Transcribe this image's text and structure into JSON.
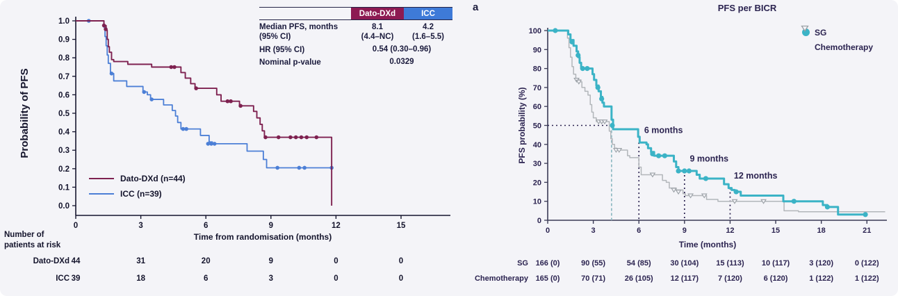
{
  "page": {
    "background": "#f4f4f8"
  },
  "chart_data": [
    {
      "id": "left-km",
      "type": "line",
      "subtype": "kaplan-meier-step",
      "title": "",
      "xlabel": "Time from randomisation (months)",
      "ylabel": "Probability of PFS",
      "xlim": [
        0,
        17.2
      ],
      "ylim": [
        0,
        1.0
      ],
      "xticks": [
        0,
        3,
        6,
        9,
        12,
        15
      ],
      "yticks": [
        0.0,
        0.1,
        0.2,
        0.3,
        0.4,
        0.5,
        0.6,
        0.7,
        0.8,
        0.9,
        1.0
      ],
      "grid": false,
      "legend_position": "inside-lower-left",
      "series": [
        {
          "name": "ICC (n=39)",
          "color": "#4c7fd6",
          "marker": "dot",
          "points": [
            [
              0,
              1.0
            ],
            [
              1.2,
              1.0
            ],
            [
              1.3,
              0.965
            ],
            [
              1.35,
              0.915
            ],
            [
              1.4,
              0.865
            ],
            [
              1.45,
              0.815
            ],
            [
              1.5,
              0.77
            ],
            [
              1.6,
              0.715
            ],
            [
              1.75,
              0.675
            ],
            [
              2.25,
              0.675
            ],
            [
              2.35,
              0.645
            ],
            [
              3.0,
              0.645
            ],
            [
              3.1,
              0.615
            ],
            [
              3.3,
              0.6
            ],
            [
              3.45,
              0.575
            ],
            [
              3.95,
              0.575
            ],
            [
              4.05,
              0.545
            ],
            [
              4.35,
              0.545
            ],
            [
              4.45,
              0.515
            ],
            [
              4.6,
              0.485
            ],
            [
              4.7,
              0.45
            ],
            [
              4.85,
              0.415
            ],
            [
              5.6,
              0.415
            ],
            [
              5.75,
              0.38
            ],
            [
              6.05,
              0.38
            ],
            [
              6.15,
              0.345
            ],
            [
              6.3,
              0.335
            ],
            [
              7.75,
              0.335
            ],
            [
              7.9,
              0.295
            ],
            [
              8.55,
              0.295
            ],
            [
              8.65,
              0.25
            ],
            [
              8.8,
              0.205
            ],
            [
              11.8,
              0.205
            ]
          ],
          "censors": [
            [
              0.6,
              1.0
            ],
            [
              1.65,
              0.715
            ],
            [
              3.15,
              0.615
            ],
            [
              3.5,
              0.575
            ],
            [
              4.95,
              0.415
            ],
            [
              5.1,
              0.415
            ],
            [
              6.1,
              0.335
            ],
            [
              6.25,
              0.335
            ],
            [
              6.4,
              0.335
            ],
            [
              9.3,
              0.205
            ],
            [
              10.3,
              0.205
            ],
            [
              10.55,
              0.205
            ],
            [
              11.8,
              0.205
            ]
          ]
        },
        {
          "name": "Dato-DXd (n=44)",
          "color": "#7e2150",
          "marker": "dot",
          "points": [
            [
              0,
              1.0
            ],
            [
              1.25,
              1.0
            ],
            [
              1.3,
              0.975
            ],
            [
              1.4,
              0.95
            ],
            [
              1.45,
              0.9
            ],
            [
              1.5,
              0.86
            ],
            [
              1.55,
              0.83
            ],
            [
              1.65,
              0.79
            ],
            [
              1.75,
              0.78
            ],
            [
              2.3,
              0.78
            ],
            [
              2.4,
              0.765
            ],
            [
              3.4,
              0.765
            ],
            [
              3.5,
              0.75
            ],
            [
              4.7,
              0.75
            ],
            [
              4.85,
              0.72
            ],
            [
              5.05,
              0.69
            ],
            [
              5.3,
              0.66
            ],
            [
              5.5,
              0.635
            ],
            [
              6.3,
              0.635
            ],
            [
              6.5,
              0.6
            ],
            [
              6.7,
              0.565
            ],
            [
              7.4,
              0.565
            ],
            [
              7.55,
              0.54
            ],
            [
              8.1,
              0.54
            ],
            [
              8.2,
              0.51
            ],
            [
              8.35,
              0.475
            ],
            [
              8.5,
              0.44
            ],
            [
              8.6,
              0.405
            ],
            [
              8.7,
              0.37
            ],
            [
              11.8,
              0.37
            ],
            [
              11.8,
              0.0
            ]
          ],
          "censors": [
            [
              1.3,
              0.975
            ],
            [
              1.38,
              0.955
            ],
            [
              4.4,
              0.75
            ],
            [
              4.55,
              0.75
            ],
            [
              5.55,
              0.635
            ],
            [
              7.0,
              0.565
            ],
            [
              7.15,
              0.565
            ],
            [
              7.6,
              0.54
            ],
            [
              8.75,
              0.37
            ],
            [
              9.35,
              0.37
            ],
            [
              9.9,
              0.37
            ],
            [
              10.15,
              0.37
            ],
            [
              10.4,
              0.37
            ],
            [
              10.65,
              0.37
            ],
            [
              11.1,
              0.37
            ]
          ]
        }
      ],
      "inset_table": {
        "col1": "Dato-DXd",
        "col2": "ICC",
        "col1_bg": "#8d1a52",
        "col2_bg": "#3e7ad8",
        "r1_label": "Median PFS, months",
        "r1_label2": "(95% CI)",
        "r1_c1": "8.1",
        "r1_c1b": "(4.4–NC)",
        "r1_c2": "4.2",
        "r1_c2b": "(1.6–5.5)",
        "r2_label": "HR (95% CI)",
        "r2_value": "0.54 (0.30–0.96)",
        "r3_label": "Nominal p-value",
        "r3_value": "0.0329"
      },
      "risk_table": {
        "header_line1": "Number of",
        "header_line2": "patients at risk",
        "rows": [
          {
            "label": "Dato-DXd",
            "values": [
              "44",
              "31",
              "20",
              "9",
              "0",
              "0"
            ]
          },
          {
            "label": "ICC",
            "values": [
              "39",
              "18",
              "6",
              "3",
              "0",
              "0"
            ]
          }
        ]
      }
    },
    {
      "id": "right-km",
      "type": "line",
      "subtype": "kaplan-meier-step",
      "panel_label": "a",
      "title": "PFS per BICR",
      "xlabel": "Time (months)",
      "ylabel": "PFS probability (%)",
      "xlim": [
        0,
        22.3
      ],
      "ylim": [
        0,
        100
      ],
      "xticks": [
        0,
        3,
        6,
        9,
        12,
        15,
        18,
        21
      ],
      "yticks": [
        0,
        10,
        20,
        30,
        40,
        50,
        60,
        70,
        80,
        90,
        100
      ],
      "grid": false,
      "legend_position": "outside-upper-right",
      "series": [
        {
          "name": "Chemotherapy",
          "color": "#b2b6ba",
          "marker": "triangle-down",
          "marker_stroke": "#9aa0a6",
          "points": [
            [
              0,
              100
            ],
            [
              1.2,
              100
            ],
            [
              1.3,
              96
            ],
            [
              1.4,
              91
            ],
            [
              1.5,
              86
            ],
            [
              1.6,
              81
            ],
            [
              1.7,
              77
            ],
            [
              1.85,
              74
            ],
            [
              2.15,
              73
            ],
            [
              2.25,
              70
            ],
            [
              2.45,
              68
            ],
            [
              2.65,
              66
            ],
            [
              2.8,
              61
            ],
            [
              2.9,
              57
            ],
            [
              3.0,
              54
            ],
            [
              3.2,
              52
            ],
            [
              3.95,
              52
            ],
            [
              4.05,
              47
            ],
            [
              4.15,
              43
            ],
            [
              4.25,
              40
            ],
            [
              4.4,
              38
            ],
            [
              4.55,
              37
            ],
            [
              5.1,
              37
            ],
            [
              5.25,
              34
            ],
            [
              5.4,
              33
            ],
            [
              5.9,
              33
            ],
            [
              6.0,
              28
            ],
            [
              6.15,
              24
            ],
            [
              7.3,
              24
            ],
            [
              7.55,
              21
            ],
            [
              7.8,
              20
            ],
            [
              8.0,
              17
            ],
            [
              8.45,
              16
            ],
            [
              8.9,
              14
            ],
            [
              9.05,
              13
            ],
            [
              10.2,
              13
            ],
            [
              10.45,
              11
            ],
            [
              11.2,
              10
            ],
            [
              15.3,
              10
            ],
            [
              15.55,
              5
            ],
            [
              16.5,
              4.5
            ],
            [
              22.2,
              4.5
            ]
          ],
          "censors": [
            [
              1.9,
              74
            ],
            [
              2.05,
              73
            ],
            [
              3.35,
              52
            ],
            [
              3.55,
              52
            ],
            [
              3.75,
              52
            ],
            [
              4.5,
              37
            ],
            [
              4.7,
              37
            ],
            [
              6.9,
              24
            ],
            [
              8.3,
              16
            ],
            [
              8.6,
              15
            ],
            [
              9.4,
              13
            ],
            [
              10.3,
              13
            ],
            [
              12.3,
              10
            ],
            [
              14.2,
              10
            ]
          ]
        },
        {
          "name": "SG",
          "color": "#3bb3c6",
          "marker": "circle",
          "points": [
            [
              0,
              100
            ],
            [
              1.2,
              100
            ],
            [
              1.35,
              98
            ],
            [
              1.5,
              95
            ],
            [
              1.7,
              92
            ],
            [
              1.9,
              89
            ],
            [
              2.0,
              86
            ],
            [
              2.1,
              83
            ],
            [
              2.2,
              80
            ],
            [
              2.85,
              80
            ],
            [
              2.95,
              77
            ],
            [
              3.05,
              74
            ],
            [
              3.2,
              71
            ],
            [
              3.35,
              68
            ],
            [
              3.5,
              65
            ],
            [
              3.6,
              62
            ],
            [
              3.7,
              60
            ],
            [
              4.1,
              60
            ],
            [
              4.2,
              53
            ],
            [
              4.3,
              48
            ],
            [
              5.8,
              48
            ],
            [
              5.95,
              44
            ],
            [
              6.05,
              41
            ],
            [
              6.5,
              40
            ],
            [
              6.6,
              38
            ],
            [
              6.8,
              36
            ],
            [
              7.0,
              34
            ],
            [
              8.2,
              34
            ],
            [
              8.3,
              31
            ],
            [
              8.45,
              28
            ],
            [
              8.6,
              26
            ],
            [
              9.6,
              26
            ],
            [
              9.8,
              24
            ],
            [
              10.0,
              22
            ],
            [
              11.4,
              22
            ],
            [
              11.6,
              19
            ],
            [
              11.9,
              17
            ],
            [
              12.1,
              16
            ],
            [
              12.3,
              15
            ],
            [
              12.7,
              13
            ],
            [
              15.3,
              13
            ],
            [
              15.5,
              10
            ],
            [
              17.9,
              10
            ],
            [
              18.1,
              8
            ],
            [
              18.4,
              7
            ],
            [
              18.9,
              7
            ],
            [
              19.1,
              3
            ],
            [
              20.9,
              3
            ]
          ],
          "censors": [
            [
              0.5,
              100
            ],
            [
              1.6,
              94
            ],
            [
              2.0,
              87
            ],
            [
              2.3,
              80
            ],
            [
              2.6,
              80
            ],
            [
              3.3,
              70
            ],
            [
              3.55,
              64
            ],
            [
              4.25,
              50
            ],
            [
              6.9,
              35
            ],
            [
              7.3,
              34
            ],
            [
              7.7,
              34
            ],
            [
              8.6,
              26
            ],
            [
              9.0,
              26
            ],
            [
              9.3,
              26
            ],
            [
              10.4,
              22
            ],
            [
              12.4,
              15
            ],
            [
              16.2,
              10
            ],
            [
              18.4,
              7
            ],
            [
              20.9,
              3
            ]
          ]
        }
      ],
      "reference_lines": {
        "median_horizontal": {
          "y": 50,
          "x_start": 0,
          "x_end": 4.2,
          "color": "#2b2350"
        },
        "median_vertical": {
          "x": 4.2,
          "y_top": 50,
          "color": "#8fbac3"
        },
        "month_verticals": [
          {
            "x": 6,
            "y_top": 41,
            "color": "#2b2350"
          },
          {
            "x": 9,
            "y_top": 26,
            "color": "#2b2350"
          },
          {
            "x": 12,
            "y_top": 17,
            "color": "#2b2350"
          }
        ]
      },
      "annotations": [
        {
          "text": "6 months",
          "x": 6.35,
          "y": 46
        },
        {
          "text": "9 months",
          "x": 9.35,
          "y": 31
        },
        {
          "text": "12 months",
          "x": 12.25,
          "y": 22
        }
      ],
      "risk_table": {
        "rows": [
          {
            "label": "SG",
            "values": [
              "166 (0)",
              "90 (55)",
              "54 (85)",
              "30 (104)",
              "15 (113)",
              "10 (117)",
              "3 (120)",
              "0 (122)"
            ]
          },
          {
            "label": "Chemotherapy",
            "values": [
              "165 (0)",
              "70 (71)",
              "26 (105)",
              "12 (117)",
              "7 (120)",
              "6 (120)",
              "1 (122)",
              "1 (122)"
            ]
          }
        ]
      }
    }
  ]
}
